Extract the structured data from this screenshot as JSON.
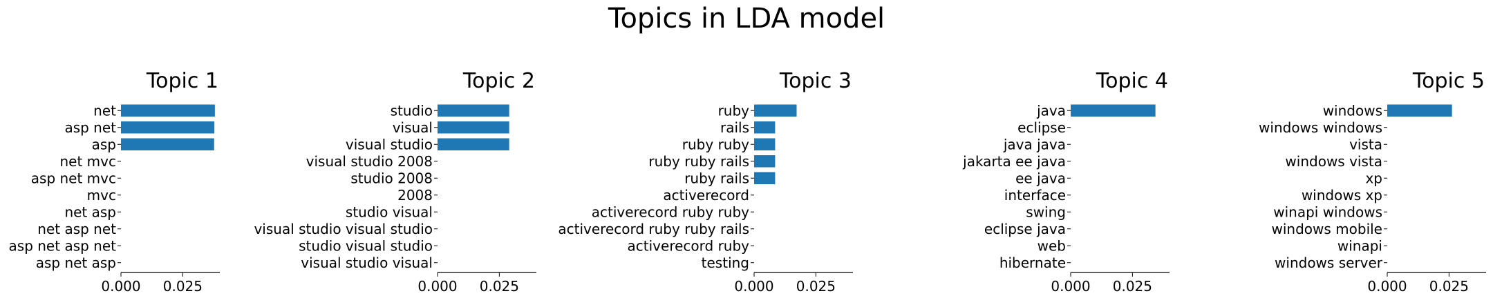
{
  "chart_data": {
    "type": "bar",
    "orientation": "horizontal",
    "title": "Topics in LDA model",
    "bar_color": "#1f77b4",
    "xlim": [
      0,
      0.04
    ],
    "xticks": [
      "0.000",
      "0.025"
    ],
    "grid": false,
    "legend": "none",
    "panels": [
      {
        "title": "Topic 1",
        "categories": [
          "net",
          "asp net",
          "asp",
          "net mvc",
          "asp net mvc",
          "mvc",
          "net asp",
          "net asp net",
          "asp net asp net",
          "asp net asp"
        ],
        "values": [
          0.038,
          0.0378,
          0.0377,
          0,
          0,
          0,
          0,
          0,
          0,
          0
        ]
      },
      {
        "title": "Topic 2",
        "categories": [
          "studio",
          "visual",
          "visual studio",
          "visual studio 2008",
          "studio 2008",
          "2008",
          "studio visual",
          "visual studio visual studio",
          "studio visual studio",
          "visual studio visual"
        ],
        "values": [
          0.029,
          0.029,
          0.029,
          0,
          0,
          0,
          0,
          0,
          0,
          0
        ]
      },
      {
        "title": "Topic 3",
        "categories": [
          "ruby",
          "rails",
          "ruby ruby",
          "ruby ruby rails",
          "ruby rails",
          "activerecord",
          "activerecord ruby ruby",
          "activerecord ruby ruby rails",
          "activerecord ruby",
          "testing"
        ],
        "values": [
          0.0172,
          0.0085,
          0.0085,
          0.0085,
          0.0085,
          0,
          0,
          0,
          0,
          0
        ]
      },
      {
        "title": "Topic 4",
        "categories": [
          "java",
          "eclipse",
          "java java",
          "jakarta ee java",
          "ee java",
          "interface",
          "swing",
          "eclipse java",
          "web",
          "hibernate"
        ],
        "values": [
          0.0343,
          0,
          0,
          0,
          0,
          0,
          0,
          0,
          0,
          0
        ]
      },
      {
        "title": "Topic 5",
        "categories": [
          "windows",
          "windows windows",
          "vista",
          "windows vista",
          "xp",
          "windows xp",
          "winapi windows",
          "windows mobile",
          "winapi",
          "windows server"
        ],
        "values": [
          0.0262,
          0,
          0,
          0,
          0,
          0,
          0,
          0,
          0,
          0
        ]
      }
    ]
  }
}
